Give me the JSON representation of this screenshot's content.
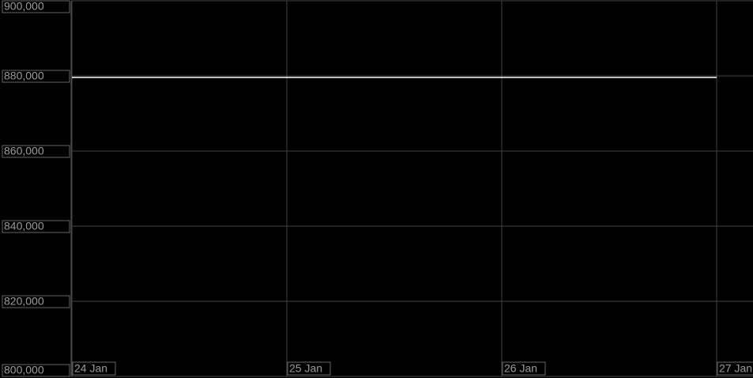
{
  "chart_data": {
    "type": "line",
    "categories": [
      "24 Jan",
      "25 Jan",
      "26 Jan",
      "27 Jan"
    ],
    "series": [
      {
        "color": "#ffffff",
        "values": [
          879600,
          879600,
          879600,
          879600
        ]
      }
    ],
    "ylim": [
      800000,
      900000
    ],
    "yticks": [
      {
        "value": 800000,
        "label": "800,000"
      },
      {
        "value": 820000,
        "label": "820,000"
      },
      {
        "value": 840000,
        "label": "840,000"
      },
      {
        "value": 860000,
        "label": "860,000"
      },
      {
        "value": 880000,
        "label": "880,000"
      },
      {
        "value": 900000,
        "label": "900,000"
      }
    ],
    "grid": true
  }
}
